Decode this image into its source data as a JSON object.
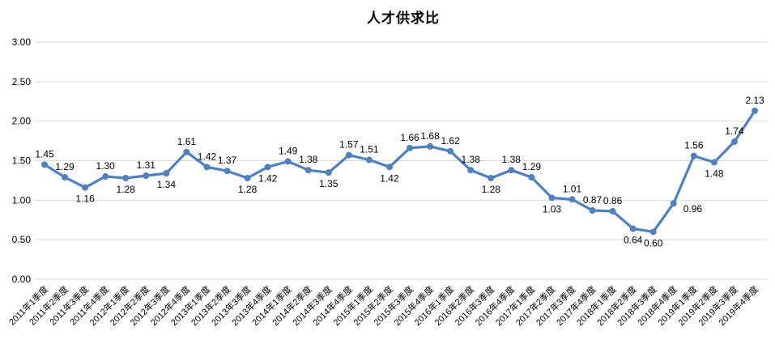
{
  "chart_data": {
    "type": "line",
    "title": "人才供求比",
    "categories": [
      "2011年1季度",
      "2011年2季度",
      "2011年3季度",
      "2011年4季度",
      "2012年1季度",
      "2012年2季度",
      "2012年3季度",
      "2012年4季度",
      "2013年1季度",
      "2013年2季度",
      "2013年3季度",
      "2013年4季度",
      "2014年1季度",
      "2014年2季度",
      "2014年3季度",
      "2014年4季度",
      "2015年1季度",
      "2015年2季度",
      "2015年3季度",
      "2015年4季度",
      "2016年1季度",
      "2016年2季度",
      "2016年3季度",
      "2016年4季度",
      "2017年1季度",
      "2017年2季度",
      "2017年3季度",
      "2017年4季度",
      "2018年1季度",
      "2018年2季度",
      "2018年3季度",
      "2018年4季度",
      "2019年1季度",
      "2019年2季度",
      "2019年3季度",
      "2019年4季度"
    ],
    "values": [
      1.45,
      1.29,
      1.16,
      1.3,
      1.28,
      1.31,
      1.34,
      1.61,
      1.42,
      1.37,
      1.28,
      1.42,
      1.49,
      1.38,
      1.35,
      1.57,
      1.51,
      1.42,
      1.66,
      1.68,
      1.62,
      1.38,
      1.28,
      1.38,
      1.29,
      1.03,
      1.01,
      0.87,
      0.86,
      0.64,
      0.6,
      0.96,
      1.56,
      1.48,
      1.74,
      2.13
    ],
    "point_labels": [
      "1.45",
      "1.29",
      "1.16",
      "1.30",
      "1.28",
      "1.31",
      "1.34",
      "1.61",
      "1.42",
      "1.37",
      "1.28",
      "1.42",
      "1.49",
      "1.38",
      "1.35",
      "1.57",
      "1.51",
      "1.42",
      "1.66",
      "1.68",
      "1.62",
      "1.38",
      "1.28",
      "1.38",
      "1.29",
      "1.03",
      "1.01",
      "0.87",
      "0.86",
      "0.64",
      "0.60",
      "0.96",
      "1.56",
      "1.48",
      "1.74",
      "2.13"
    ],
    "label_positions": [
      "above",
      "above",
      "below",
      "above",
      "below",
      "above",
      "below",
      "above",
      "above",
      "above",
      "below",
      "below",
      "above",
      "above",
      "below",
      "above",
      "above",
      "below",
      "above",
      "above",
      "above",
      "above",
      "below",
      "above",
      "above",
      "below",
      "above",
      "above",
      "above",
      "below",
      "below",
      "right",
      "above",
      "below",
      "above",
      "above"
    ],
    "ylim": [
      0,
      3
    ],
    "ytick_step": 0.5,
    "ytick_labels": [
      "0.00",
      "0.50",
      "1.00",
      "1.50",
      "2.00",
      "2.50",
      "3.00"
    ],
    "grid": true,
    "legend": "none",
    "line_color": "#4F81BD",
    "marker_color": "#4F81BD",
    "grid_color": "#D9D9D9",
    "text_color": "#000000"
  }
}
